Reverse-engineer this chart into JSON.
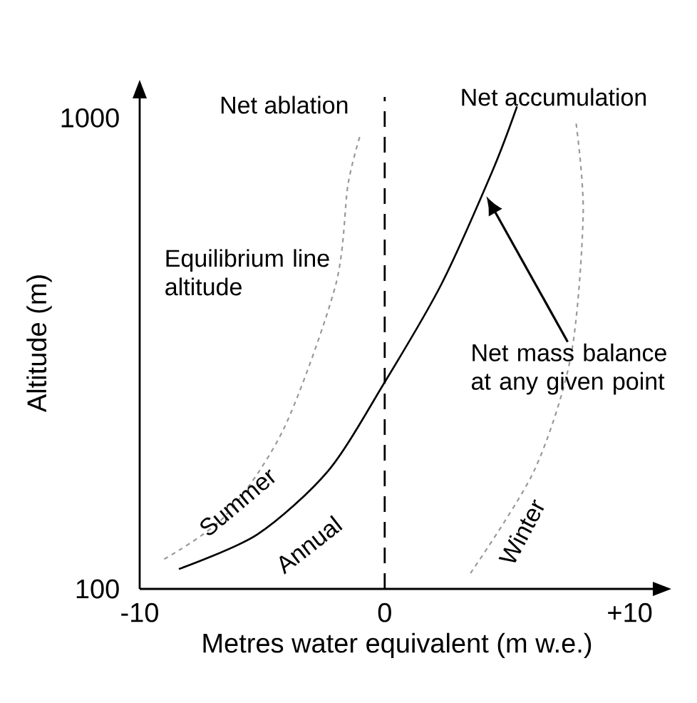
{
  "chart_data": {
    "type": "line",
    "xlabel": "Metres water equivalent (m w.e.)",
    "ylabel": "Altitude (m)",
    "xlim": [
      -10,
      11
    ],
    "ylim": [
      100,
      1040
    ],
    "xticks": [
      -10,
      0,
      {
        "value": 10,
        "label": "+10"
      }
    ],
    "yticks": [
      100,
      1000
    ],
    "series": [
      {
        "name": "Summer",
        "color": "#999999",
        "line_style": "dashed",
        "x": [
          -9.0,
          -6.5,
          -4.1,
          -2.0,
          -1.5,
          -1.0
        ],
        "values": [
          157,
          240,
          408,
          681,
          872,
          967
        ]
      },
      {
        "name": "Annual",
        "color": "#000000",
        "line_style": "solid",
        "x": [
          -8.4,
          -5.2,
          -2.3,
          0,
          2.3,
          4.4,
          5.4
        ],
        "values": [
          138,
          204,
          326,
          495,
          681,
          899,
          1022
        ]
      },
      {
        "name": "Winter",
        "color": "#999999",
        "line_style": "dashed",
        "x": [
          3.5,
          6.1,
          7.6,
          8.1,
          7.8
        ],
        "values": [
          130,
          326,
          545,
          817,
          994
        ]
      }
    ],
    "ref_lines": [
      {
        "axis": "x",
        "value": 0,
        "color": "#000000",
        "line_style": "dashed"
      }
    ],
    "annotations": [
      "Net ablation",
      "Net accumulation",
      "Equilibrium line altitude",
      "Net mass balance at any given point"
    ]
  }
}
